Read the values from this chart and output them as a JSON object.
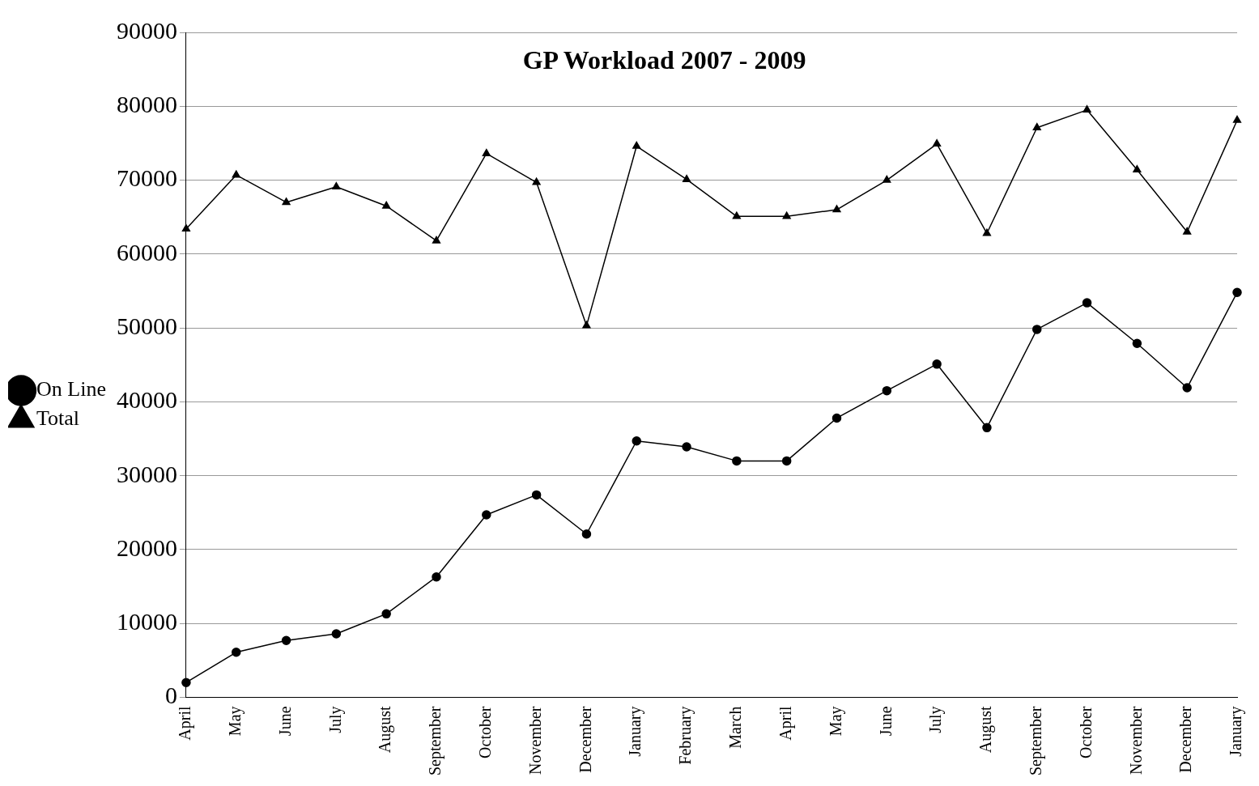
{
  "chart_data": {
    "type": "line",
    "title": "GP Workload 2007 - 2009",
    "categories": [
      "April",
      "May",
      "June",
      "July",
      "August",
      "September",
      "October",
      "November",
      "December",
      "January",
      "February",
      "March",
      "April",
      "May",
      "June",
      "July",
      "August",
      "September",
      "October",
      "November",
      "December",
      "January"
    ],
    "series": [
      {
        "name": "On Line",
        "color": "#000000",
        "marker": "circle",
        "values": [
          2000,
          6100,
          7700,
          8600,
          11300,
          16300,
          24700,
          27400,
          22100,
          34700,
          33900,
          32000,
          32000,
          37800,
          41500,
          45100,
          36500,
          49800,
          53400,
          47900,
          41900,
          54800
        ]
      },
      {
        "name": "Total",
        "color": "#000000",
        "marker": "triangle",
        "values": [
          63400,
          70700,
          67000,
          69100,
          66500,
          61800,
          73600,
          69700,
          50300,
          74600,
          70100,
          65100,
          65100,
          66000,
          70000,
          74900,
          62800,
          77100,
          79500,
          71400,
          63000,
          78100
        ]
      }
    ],
    "ylim": [
      0,
      90000
    ],
    "yticks": [
      0,
      10000,
      20000,
      30000,
      40000,
      50000,
      60000,
      70000,
      80000,
      90000
    ],
    "grid": "y",
    "legend": "left",
    "line_style": "solid"
  }
}
